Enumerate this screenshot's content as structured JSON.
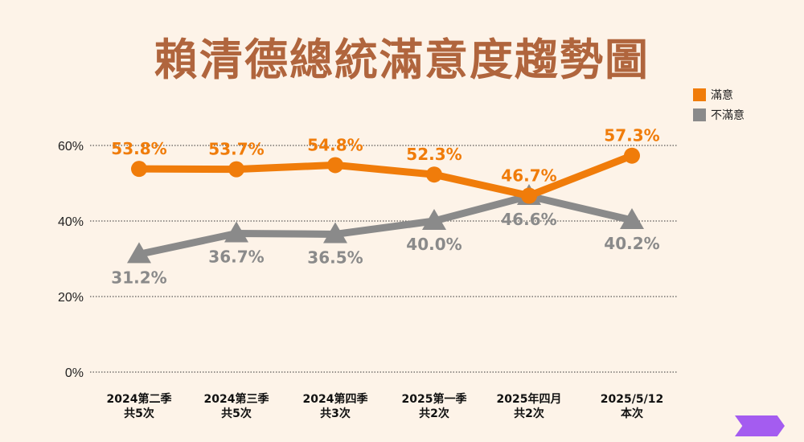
{
  "title": "賴清德總統滿意度趨勢圖",
  "chart_data": {
    "type": "line",
    "title": "賴清德總統滿意度趨勢圖",
    "categories": [
      [
        "2024第二季",
        "共5次"
      ],
      [
        "2024第三季",
        "共5次"
      ],
      [
        "2024第四季",
        "共3次"
      ],
      [
        "2025第一季",
        "共2次"
      ],
      [
        "2025年四月",
        "共2次"
      ],
      [
        "2025/5/12",
        "本次"
      ]
    ],
    "series": [
      {
        "name": "滿意",
        "color": "#f07c0a",
        "marker": "circle",
        "values": [
          53.8,
          53.7,
          54.8,
          52.3,
          46.7,
          57.3
        ],
        "labels": [
          "53.8%",
          "53.7%",
          "54.8%",
          "52.3%",
          "46.7%",
          "57.3%"
        ]
      },
      {
        "name": "不滿意",
        "color": "#8a8a8a",
        "marker": "triangle",
        "values": [
          31.2,
          36.7,
          36.5,
          40.0,
          46.6,
          40.2
        ],
        "labels": [
          "31.2%",
          "36.7%",
          "36.5%",
          "40.0%",
          "46.6%",
          "40.2%"
        ]
      }
    ],
    "yticks": [
      "0%",
      "20%",
      "40%",
      "60%"
    ],
    "ylim": [
      0,
      60
    ],
    "grid": "dotted horizontal",
    "legend": "top-right"
  },
  "nav": {
    "next_icon": "chevron-right-icon",
    "color": "#a45cf0"
  }
}
